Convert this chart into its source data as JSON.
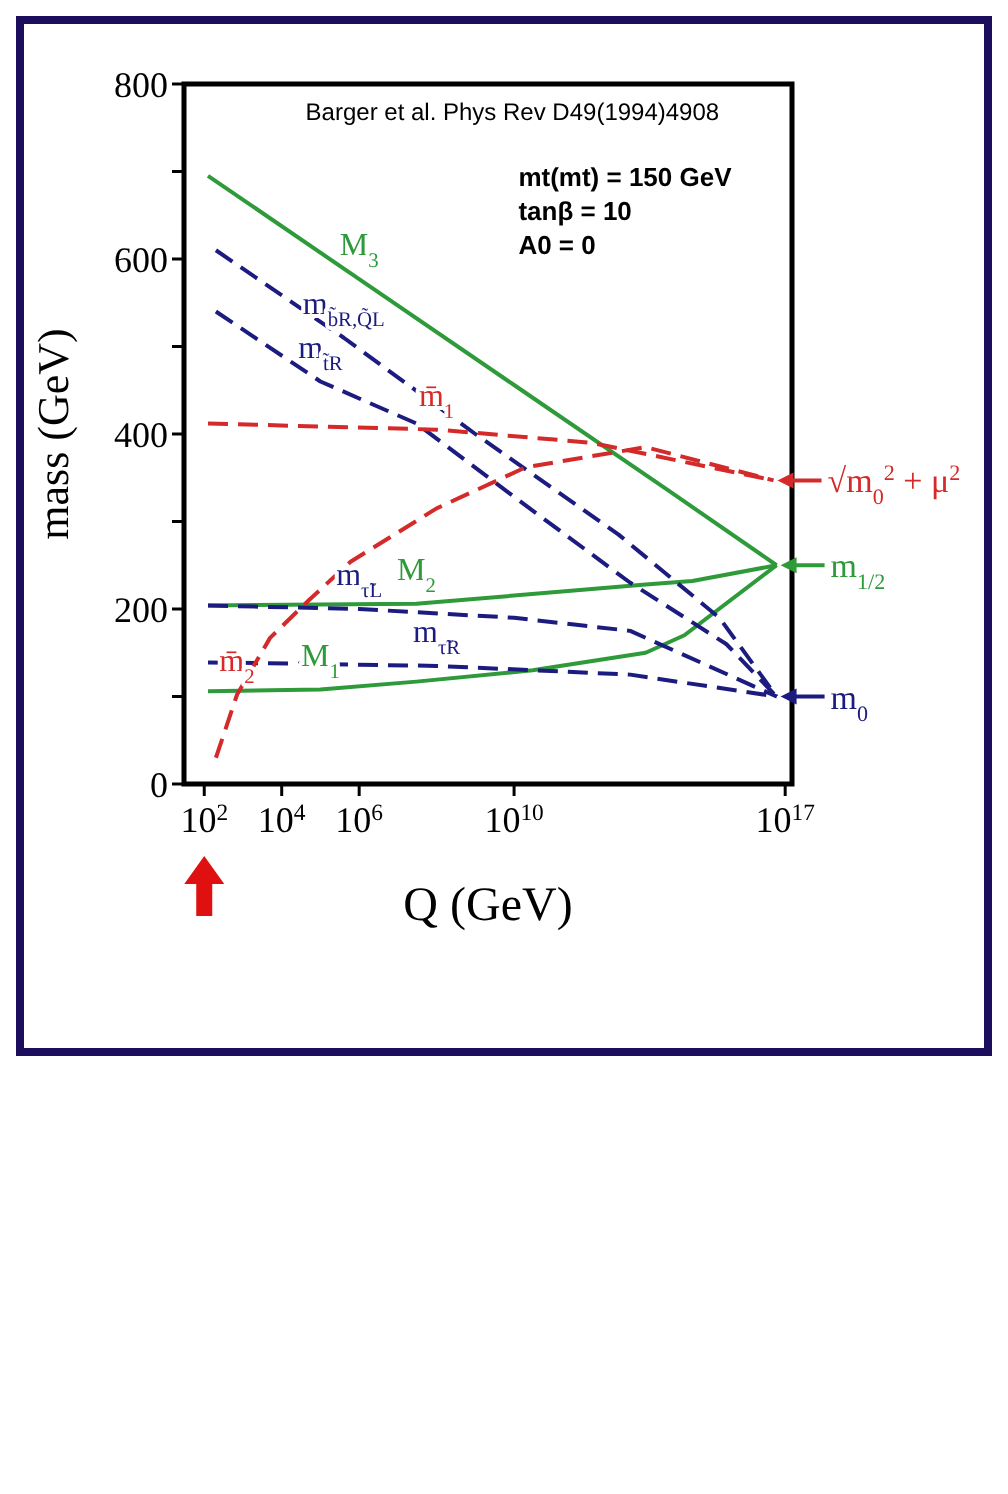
{
  "chart_data": {
    "type": "line",
    "xlabel": "Q (GeV)",
    "ylabel": "mass (GeV)",
    "log": "x",
    "marker": "none",
    "xlim": [
      30,
      1.5e+17
    ],
    "xticks": [
      {
        "value": 100,
        "label": "10$^{2}$"
      },
      {
        "value": 10000,
        "label": "10$^{4}$"
      },
      {
        "value": 1000000,
        "label": "10$^{6}$"
      },
      {
        "value": 10000000000,
        "label": "10$^{10}$"
      },
      {
        "value": 1e+17,
        "label": "10$^{17}$"
      }
    ],
    "ylim": [
      0,
      800
    ],
    "yticks": [
      0,
      {
        "value": 100,
        "label": null
      },
      200,
      {
        "value": 300,
        "label": null
      },
      400,
      {
        "value": 500,
        "label": null
      },
      600,
      {
        "value": 700,
        "label": null
      },
      800
    ],
    "series": [
      {
        "name": "M$_{3}$",
        "color": "#2e9a3a",
        "line_style": "solid",
        "x": [
          125,
          1000000,
          10000000000,
          100000000000000,
          6e+16
        ],
        "values": [
          695,
          577,
          456,
          335,
          250
        ]
      },
      {
        "name": "M$_{2}$",
        "color": "#2e9a3a",
        "line_style": "solid",
        "x": [
          125,
          30000000,
          25000000000000,
          400000000000000,
          6e+16
        ],
        "values": [
          204,
          206,
          228,
          232,
          250
        ]
      },
      {
        "name": "M$_{1}$",
        "color": "#2e9a3a",
        "line_style": "solid",
        "x": [
          125,
          100000,
          30000000,
          30000000000,
          25000000000000,
          250000000000000,
          6e+16
        ],
        "values": [
          106,
          108,
          117,
          130,
          150,
          170,
          250
        ]
      },
      {
        "name": "m$_{b̃R,Q̃L}$",
        "color": "#1c1c80",
        "line_style": "dashed",
        "x": [
          200,
          400000,
          1000000000,
          5000000000000,
          2000000000000000,
          6e+16
        ],
        "values": [
          610,
          510,
          400,
          285,
          190,
          100
        ]
      },
      {
        "name": "m$_{t̃R}$",
        "color": "#1c1c80",
        "line_style": "dashed",
        "x": [
          200,
          100000,
          30000000,
          12500000000,
          10000000000000,
          3000000000000000,
          6e+16
        ],
        "values": [
          540,
          460,
          412,
          325,
          230,
          160,
          100
        ]
      },
      {
        "name": "m$_{τ̃L}$",
        "color": "#1c1c80",
        "line_style": "dashed",
        "x": [
          125,
          1000000,
          10000000000,
          10000000000000,
          6e+16
        ],
        "values": [
          204,
          200,
          190,
          175,
          100
        ]
      },
      {
        "name": "m$_{τ̃R}$",
        "color": "#1c1c80",
        "line_style": "dashed",
        "x": [
          125,
          100000000,
          10000000000000,
          6e+16
        ],
        "values": [
          139,
          135,
          125,
          100
        ]
      },
      {
        "name": "m̄$_{1}$",
        "color": "#d42a2a",
        "line_style": "dashed",
        "x": [
          125,
          100000000,
          1000000000000,
          5e+16
        ],
        "values": [
          412,
          405,
          390,
          347
        ]
      },
      {
        "name": "m̄$_{2}$",
        "color": "#d42a2a",
        "line_style": "dashed",
        "x": [
          200,
          700,
          5000,
          50000,
          600000,
          100000000,
          20000000000,
          25000000000000,
          5e+16
        ],
        "values": [
          30,
          102,
          167,
          210,
          254,
          315,
          362,
          385,
          347
        ]
      }
    ],
    "annotations": [
      "Barger et al. Phys Rev D49(1994)4908",
      "mt(mt) = 150 GeV",
      "tanβ = 10",
      "A0 = 0",
      "√m$_{0}$$^{2}$ + μ$^{2}$",
      "m$_{1/2}$",
      "m$_{0}$"
    ]
  }
}
